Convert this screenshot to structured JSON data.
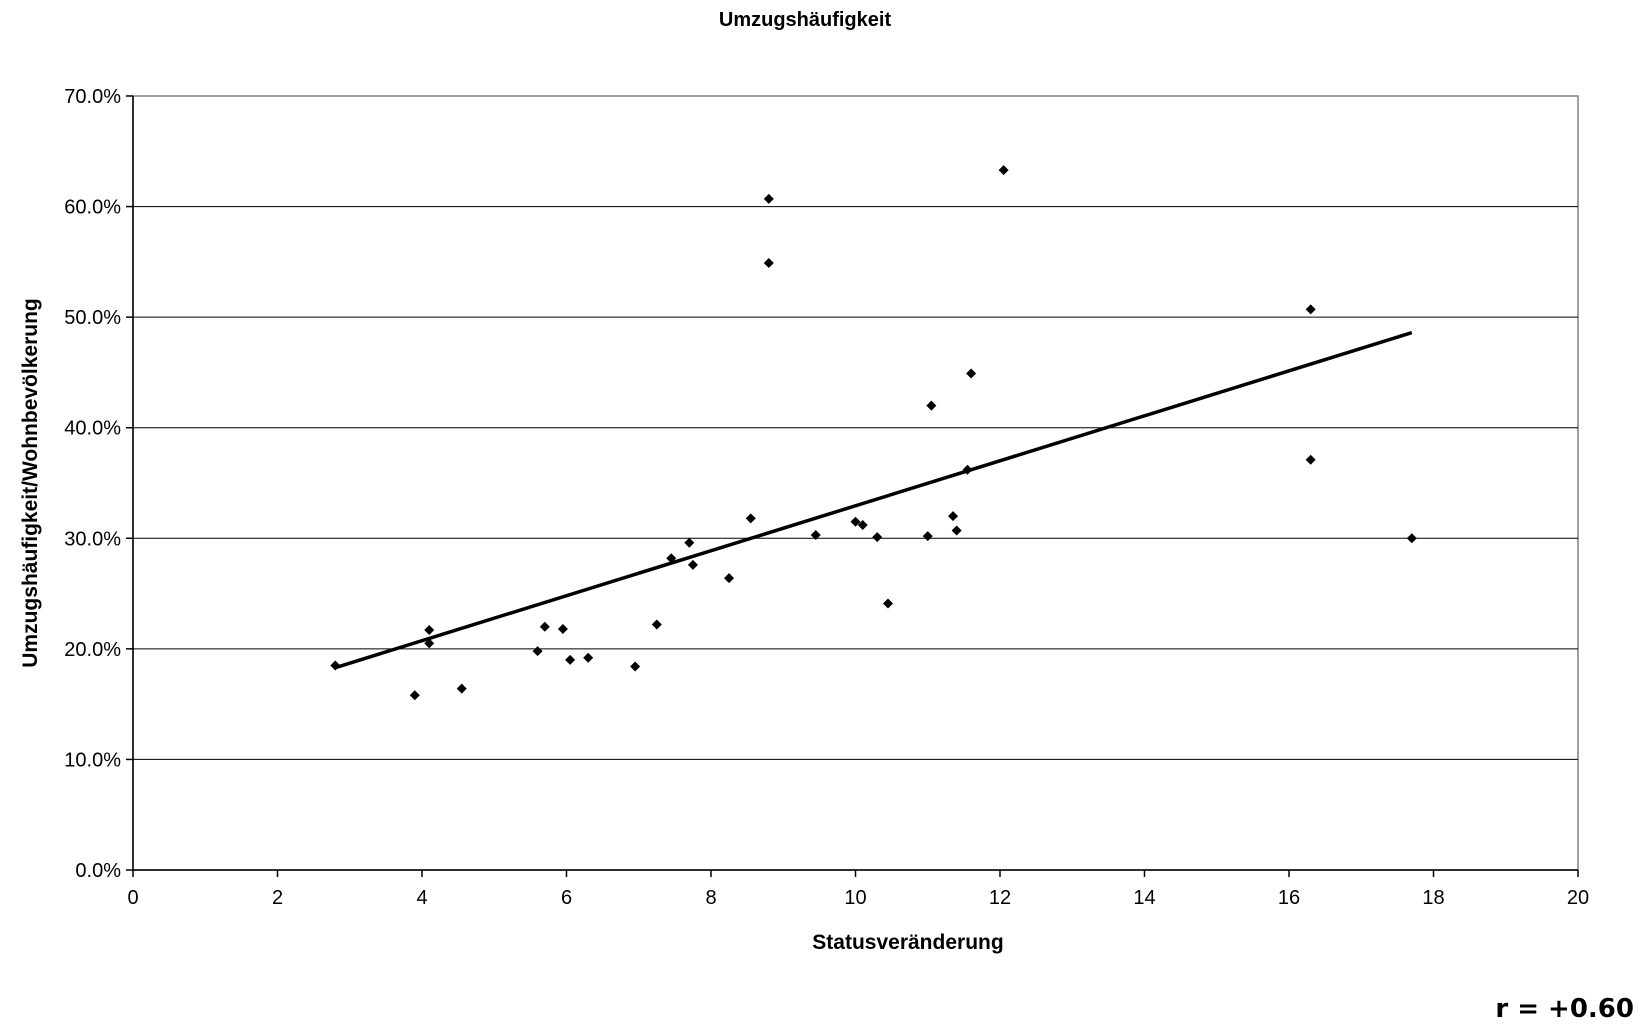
{
  "chart_data": {
    "type": "scatter",
    "title": "Umzugshäufigkeit",
    "xlabel": "Statusveränderung",
    "ylabel": "Umzugshäufigkeit/Wohnbevölkerung",
    "xlim": [
      0,
      20
    ],
    "ylim": [
      0,
      0.7
    ],
    "xticks": [
      0,
      2,
      4,
      6,
      8,
      10,
      12,
      14,
      16,
      18,
      20
    ],
    "yticks": [
      0,
      0.1,
      0.2,
      0.3,
      0.4,
      0.5,
      0.6,
      0.7
    ],
    "ytick_labels": [
      "0.0%",
      "10.0%",
      "20.0%",
      "30.0%",
      "40.0%",
      "50.0%",
      "60.0%",
      "70.0%"
    ],
    "grid": "horizontal",
    "marker": "diamond",
    "color": "#000000",
    "points": [
      {
        "x": 2.8,
        "y": 0.185
      },
      {
        "x": 3.9,
        "y": 0.158
      },
      {
        "x": 4.1,
        "y": 0.217
      },
      {
        "x": 4.1,
        "y": 0.205
      },
      {
        "x": 4.55,
        "y": 0.164
      },
      {
        "x": 5.6,
        "y": 0.198
      },
      {
        "x": 5.7,
        "y": 0.22
      },
      {
        "x": 5.95,
        "y": 0.218
      },
      {
        "x": 6.05,
        "y": 0.19
      },
      {
        "x": 6.3,
        "y": 0.192
      },
      {
        "x": 6.95,
        "y": 0.184
      },
      {
        "x": 7.25,
        "y": 0.222
      },
      {
        "x": 7.45,
        "y": 0.282
      },
      {
        "x": 7.7,
        "y": 0.296
      },
      {
        "x": 7.75,
        "y": 0.276
      },
      {
        "x": 8.25,
        "y": 0.264
      },
      {
        "x": 8.55,
        "y": 0.318
      },
      {
        "x": 8.8,
        "y": 0.607
      },
      {
        "x": 8.8,
        "y": 0.549
      },
      {
        "x": 9.45,
        "y": 0.303
      },
      {
        "x": 10.0,
        "y": 0.315
      },
      {
        "x": 10.1,
        "y": 0.312
      },
      {
        "x": 10.3,
        "y": 0.301
      },
      {
        "x": 10.45,
        "y": 0.241
      },
      {
        "x": 11.0,
        "y": 0.302
      },
      {
        "x": 11.05,
        "y": 0.42
      },
      {
        "x": 11.35,
        "y": 0.32
      },
      {
        "x": 11.4,
        "y": 0.307
      },
      {
        "x": 11.55,
        "y": 0.362
      },
      {
        "x": 11.6,
        "y": 0.449
      },
      {
        "x": 12.05,
        "y": 0.633
      },
      {
        "x": 16.3,
        "y": 0.507
      },
      {
        "x": 16.3,
        "y": 0.371
      },
      {
        "x": 17.7,
        "y": 0.3
      }
    ],
    "trendline": {
      "x1": 2.8,
      "y1": 0.183,
      "x2": 17.7,
      "y2": 0.486
    },
    "annotation": "r = +0.60"
  }
}
